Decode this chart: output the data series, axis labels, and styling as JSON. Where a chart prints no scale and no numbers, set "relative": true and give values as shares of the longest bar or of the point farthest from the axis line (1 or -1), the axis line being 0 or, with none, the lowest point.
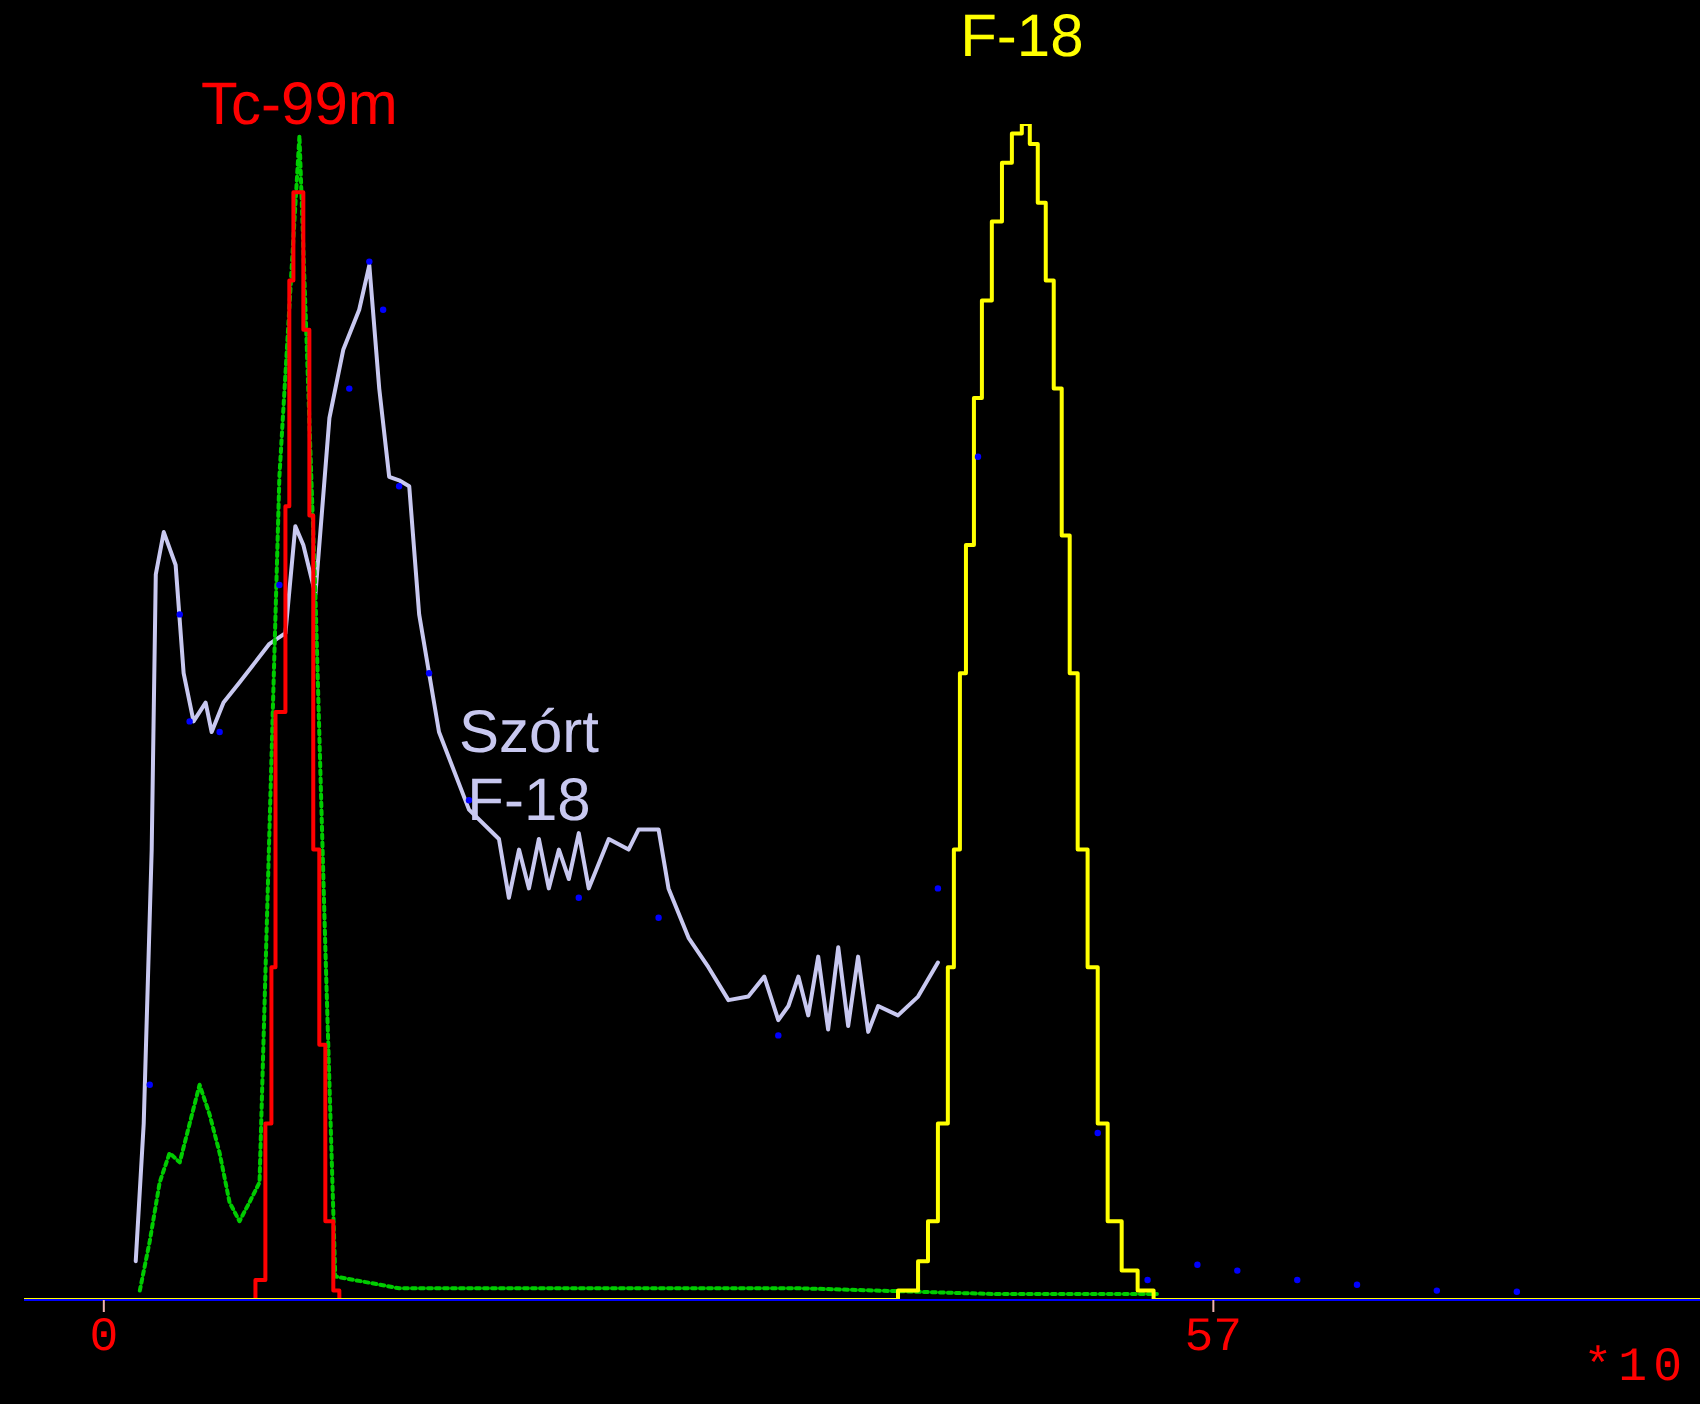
{
  "chart_data": {
    "type": "line",
    "relative": true,
    "xlim": [
      -4.1,
      82
    ],
    "xticks": [
      0,
      57
    ],
    "tick_labels": "x",
    "grid": false,
    "legend": false,
    "annotations": [
      "*10"
    ],
    "series": [
      {
        "name": "Szórt F-18",
        "color": "#c8c8f0",
        "x": [
          1.64,
          2.05,
          2.46,
          2.67,
          3.08,
          3.69,
          4.1,
          4.61,
          5.23,
          5.54,
          6.15,
          6.97,
          8.51,
          9.33,
          9.84,
          10.25,
          10.87,
          11.59,
          12.3,
          13.12,
          13.64,
          14.15,
          14.66,
          15.17,
          15.69,
          16.2,
          17.22,
          18.76,
          20.3,
          20.81,
          21.33,
          21.84,
          22.35,
          22.86,
          23.38,
          23.89,
          24.4,
          24.91,
          25.94,
          26.96,
          27.47,
          28.5,
          29.01,
          30.04,
          31.06,
          32.09,
          33.11,
          33.93,
          34.65,
          35.17,
          35.68,
          36.19,
          36.7,
          37.21,
          37.73,
          38.24,
          38.75,
          39.27,
          39.78,
          40.8,
          41.83,
          42.85
        ],
        "values": [
          0.033,
          0.15,
          0.383,
          0.617,
          0.653,
          0.625,
          0.533,
          0.492,
          0.508,
          0.483,
          0.508,
          0.525,
          0.558,
          0.567,
          0.658,
          0.642,
          0.6,
          0.75,
          0.808,
          0.842,
          0.88,
          0.775,
          0.7,
          0.697,
          0.692,
          0.583,
          0.483,
          0.417,
          0.392,
          0.342,
          0.383,
          0.35,
          0.392,
          0.35,
          0.383,
          0.358,
          0.397,
          0.35,
          0.392,
          0.383,
          0.4,
          0.4,
          0.35,
          0.308,
          0.283,
          0.255,
          0.258,
          0.275,
          0.238,
          0.25,
          0.275,
          0.242,
          0.292,
          0.23,
          0.3,
          0.233,
          0.292,
          0.228,
          0.25,
          0.242,
          0.258,
          0.287
        ]
      },
      {
        "color": "#00cc00",
        "line_style": "dotted",
        "x": [
          1.85,
          2.36,
          2.87,
          3.38,
          3.9,
          4.41,
          4.92,
          5.43,
          5.95,
          6.46,
          6.97,
          7.48,
          8.0,
          8.51,
          9.02,
          10.05,
          10.87,
          11.38,
          11.89,
          15.17,
          25.4,
          35.7,
          45.9,
          54.1
        ],
        "values": [
          0.008,
          0.05,
          0.1,
          0.125,
          0.117,
          0.15,
          0.183,
          0.158,
          0.125,
          0.083,
          0.067,
          0.083,
          0.1,
          0.4,
          0.7,
          0.99,
          0.6,
          0.3,
          0.02,
          0.01,
          0.01,
          0.01,
          0.005,
          0.005
        ]
      },
      {
        "name": "Tc-99m",
        "color": "#ff0000",
        "type": "step",
        "x": [
          7.48,
          7.79,
          8.3,
          8.61,
          8.82,
          9.33,
          9.53,
          9.74,
          10.05,
          10.25,
          10.56,
          10.76,
          11.07,
          11.38,
          11.79,
          12.1
        ],
        "values": [
          0,
          0.017,
          0.15,
          0.283,
          0.5,
          0.675,
          0.867,
          0.942,
          0.942,
          0.825,
          0.667,
          0.383,
          0.217,
          0.067,
          0.008,
          0
        ]
      },
      {
        "name": "F-18",
        "color": "#ffff00",
        "type": "step",
        "x": [
          -4.1,
          39.78,
          40.8,
          41.83,
          42.34,
          42.85,
          43.36,
          43.67,
          43.98,
          44.29,
          44.7,
          45.11,
          45.62,
          46.14,
          46.65,
          47.16,
          47.57,
          47.98,
          48.39,
          48.8,
          49.21,
          49.62,
          50.03,
          50.54,
          51.06,
          51.57,
          52.29,
          53.11,
          53.93,
          82
        ],
        "values": [
          0,
          0,
          0.008,
          0.033,
          0.067,
          0.15,
          0.283,
          0.383,
          0.533,
          0.642,
          0.767,
          0.85,
          0.917,
          0.967,
          0.992,
          1,
          0.983,
          0.933,
          0.867,
          0.775,
          0.65,
          0.533,
          0.383,
          0.283,
          0.15,
          0.067,
          0.025,
          0.008,
          0,
          0
        ]
      },
      {
        "color": "#0000ff",
        "type": "scatter",
        "marker": "circle",
        "x": [
          2.36,
          3.9,
          4.41,
          5.95,
          9.02,
          12.61,
          13.64,
          14.35,
          15.17,
          16.71,
          18.76,
          24.4,
          28.5,
          34.65,
          42.85,
          44.91,
          51.06,
          53.62,
          56.18,
          58.23,
          61.31,
          64.38,
          68.48,
          72.59
        ],
        "values": [
          0.183,
          0.583,
          0.492,
          0.483,
          0.608,
          0.775,
          0.883,
          0.842,
          0.692,
          0.533,
          0.425,
          0.342,
          0.325,
          0.225,
          0.35,
          0.717,
          0.142,
          0.017,
          0.03,
          0.025,
          0.017,
          0.013,
          0.008,
          0.007
        ]
      }
    ]
  }
}
